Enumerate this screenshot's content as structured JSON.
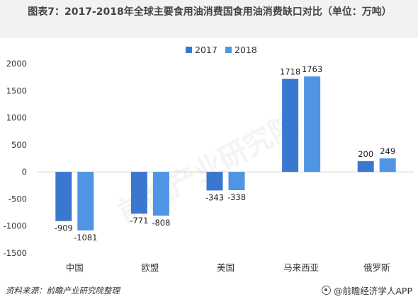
{
  "chart_data": {
    "type": "bar",
    "title": "图表7：2017-2018年全球主要食用油消费国食用油消费缺口对比（单位：万吨）",
    "categories": [
      "中国",
      "欧盟",
      "美国",
      "马来西亚",
      "俄罗斯"
    ],
    "series": [
      {
        "name": "2017",
        "color": "#3a78d0",
        "values": [
          -909,
          -771,
          -343,
          1718,
          200
        ]
      },
      {
        "name": "2018",
        "color": "#4f95e3",
        "values": [
          -1081,
          -808,
          -338,
          1763,
          249
        ]
      }
    ],
    "ylim": [
      -1500,
      2000
    ],
    "yticks": [
      2000,
      1500,
      1000,
      500,
      0,
      -500,
      -1000,
      -1500
    ],
    "legend": "top-center",
    "grid": false
  },
  "footer": {
    "source": "资料来源：前瞻产业研究院整理",
    "brand": "@前瞻经济学人APP"
  },
  "watermark": "前瞻产业研究院"
}
